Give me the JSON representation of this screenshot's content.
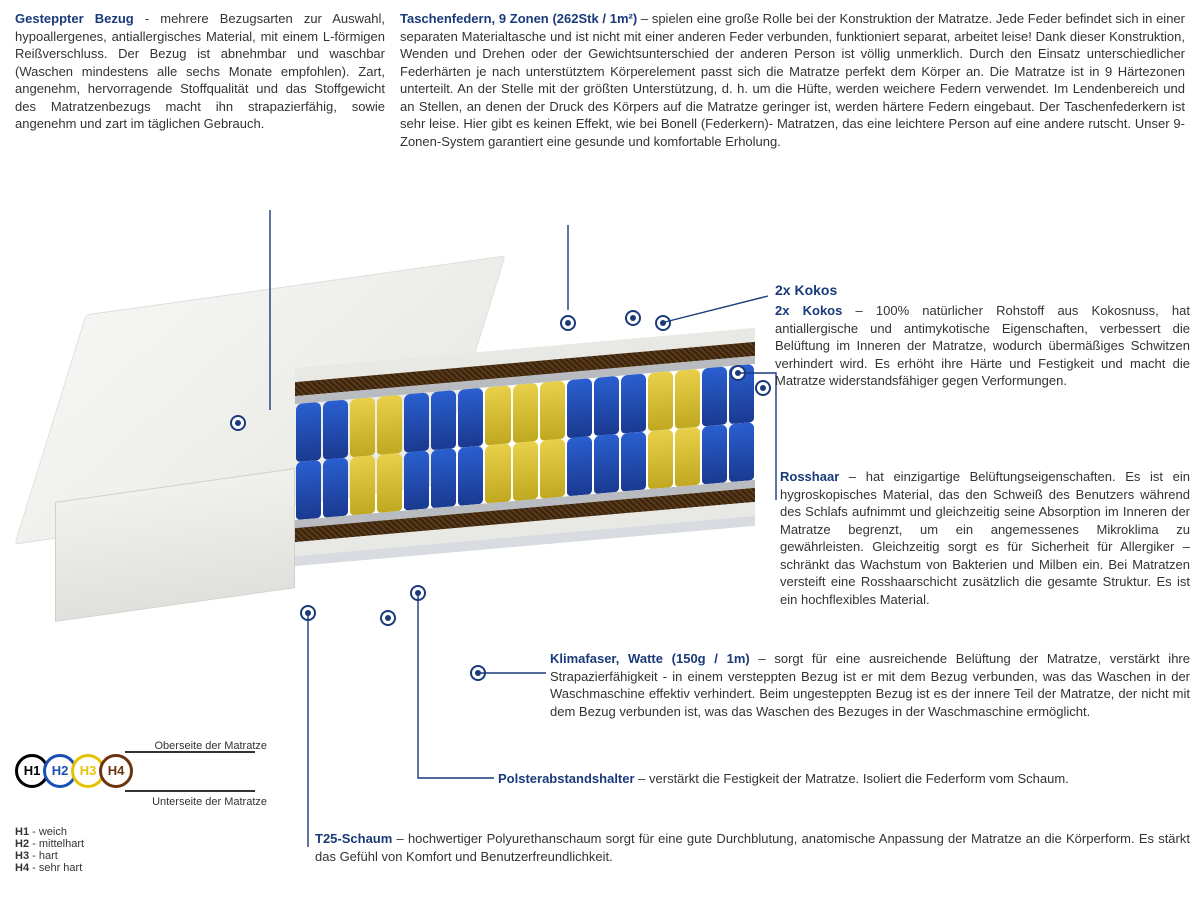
{
  "colors": {
    "title": "#1a3a7a",
    "text": "#333333",
    "h1": "#000000",
    "h2": "#1a4fb8",
    "h3": "#e6c200",
    "h4": "#6b3410",
    "spring_blue": "#2a5fd0",
    "spring_yellow": "#e8d04a",
    "coconut": "#3a2410",
    "foam": "#e8e8e4",
    "felt": "#b8bcc0"
  },
  "sections": {
    "bezug": {
      "title": "Gesteppter Bezug",
      "sep": " - ",
      "body": "mehrere Bezugsarten zur Auswahl, hypoallergenes, antiallergisches Material, mit einem L-förmigen Reißverschluss. Der Bezug ist abnehmbar und waschbar (Waschen mindestens alle sechs Monate empfohlen). Zart, angenehm, hervorragende Stoffqualität und das Stoffgewicht des Matratzenbezugs macht ihn strapazierfähig, sowie angenehm und zart im täglichen Gebrauch."
    },
    "federn": {
      "title": "Taschenfedern, 9 Zonen (262Stk / 1m²)",
      "sep": " – ",
      "body": "spielen eine große Rolle bei der Konstruktion der Matratze. Jede Feder befindet sich in einer separaten Materialtasche und ist nicht mit einer anderen Feder verbunden, funktioniert separat, arbeitet leise! Dank dieser Konstruktion, Wenden und Drehen oder der Gewichtsunterschied der anderen Person ist völlig unmerklich. Durch den Einsatz unterschiedlicher Federhärten je nach unterstütztem Körperelement passt sich die Matratze perfekt dem Körper an. Die Matratze ist in 9 Härtezonen unterteilt. An der Stelle mit der größten Unterstützung, d. h. um die Hüfte, werden weichere Federn verwendet. Im Lendenbereich und an Stellen, an denen der Druck des Körpers auf die Matratze geringer ist, werden härtere Federn eingebaut. Der Taschenfederkern ist sehr leise. Hier gibt es keinen Effekt, wie bei Bonell (Federkern)- Matratzen, das eine leichtere Person auf eine andere rutscht. Unser 9-Zonen-System garantiert eine gesunde und komfortable Erholung."
    },
    "kokos_h": "2x Kokos",
    "kokos": {
      "title": "2x Kokos",
      "sep": " – ",
      "body": "100% natürlicher Rohstoff aus Kokosnuss, hat antiallergische und antimykotische Eigenschaften, verbessert die Belüftung im Inneren der Matratze, wodurch übermäßiges Schwitzen verhindert wird. Es erhöht ihre Härte und Festigkeit und macht die Matratze widerstandsfähiger gegen Verformungen."
    },
    "rosshaar": {
      "title": "Rosshaar",
      "sep": " – ",
      "body": "hat einzigartige Belüftungseigenschaften. Es ist ein hygroskopisches Material, das den Schweiß des Benutzers während des Schlafs aufnimmt und gleichzeitig seine Absorption im Inneren der Matratze begrenzt, um ein angemessenes Mikroklima zu gewährleisten. Gleichzeitig sorgt es für Sicherheit für Allergiker – schränkt das Wachstum von Bakterien und Milben ein. Bei Matratzen versteift eine Rosshaarschicht zusätzlich die gesamte Struktur. Es ist ein hochflexibles Material."
    },
    "klima": {
      "title": "Klimafaser, Watte (150g / 1m)",
      "sep": " – ",
      "body": "sorgt für eine ausreichende Belüftung der Matratze, verstärkt ihre Strapazierfähigkeit - in einem versteppten Bezug ist er mit dem Bezug verbunden, was das Waschen in der Waschmaschine effektiv verhindert. Beim ungesteppten Bezug ist es der innere Teil der Matratze, der nicht mit dem Bezug verbunden ist, was das Waschen des Bezuges in der Waschmaschine ermöglicht."
    },
    "polster": {
      "title": "Polsterabstandshalter",
      "sep": " – ",
      "body": "verstärkt die Festigkeit der Matratze. Isoliert die Federform vom Schaum."
    },
    "schaum": {
      "title": "T25-Schaum",
      "sep": " – ",
      "body": "hochwertiger Polyurethanschaum sorgt für eine gute Durchblutung, anatomische Anpassung der Matratze an die Körperform. Es stärkt das Gefühl von Komfort und Benutzerfreundlichkeit."
    }
  },
  "hardness": {
    "top_label": "Oberseite der Matratze",
    "bottom_label": "Unterseite der Matratze",
    "items": [
      {
        "code": "H1",
        "desc": "weich"
      },
      {
        "code": "H2",
        "desc": "mittelhart"
      },
      {
        "code": "H3",
        "desc": "hart"
      },
      {
        "code": "H4",
        "desc": "sehr hart"
      }
    ]
  },
  "spring_zones": [
    "b",
    "b",
    "y",
    "y",
    "b",
    "b",
    "b",
    "y",
    "y",
    "y",
    "b",
    "b",
    "b",
    "y",
    "y",
    "b",
    "b"
  ],
  "layers_top_to_bottom": [
    "cover",
    "climate",
    "foam",
    "coconut",
    "horsehair",
    "springs",
    "horsehair",
    "coconut",
    "foam",
    "climate",
    "cover"
  ]
}
